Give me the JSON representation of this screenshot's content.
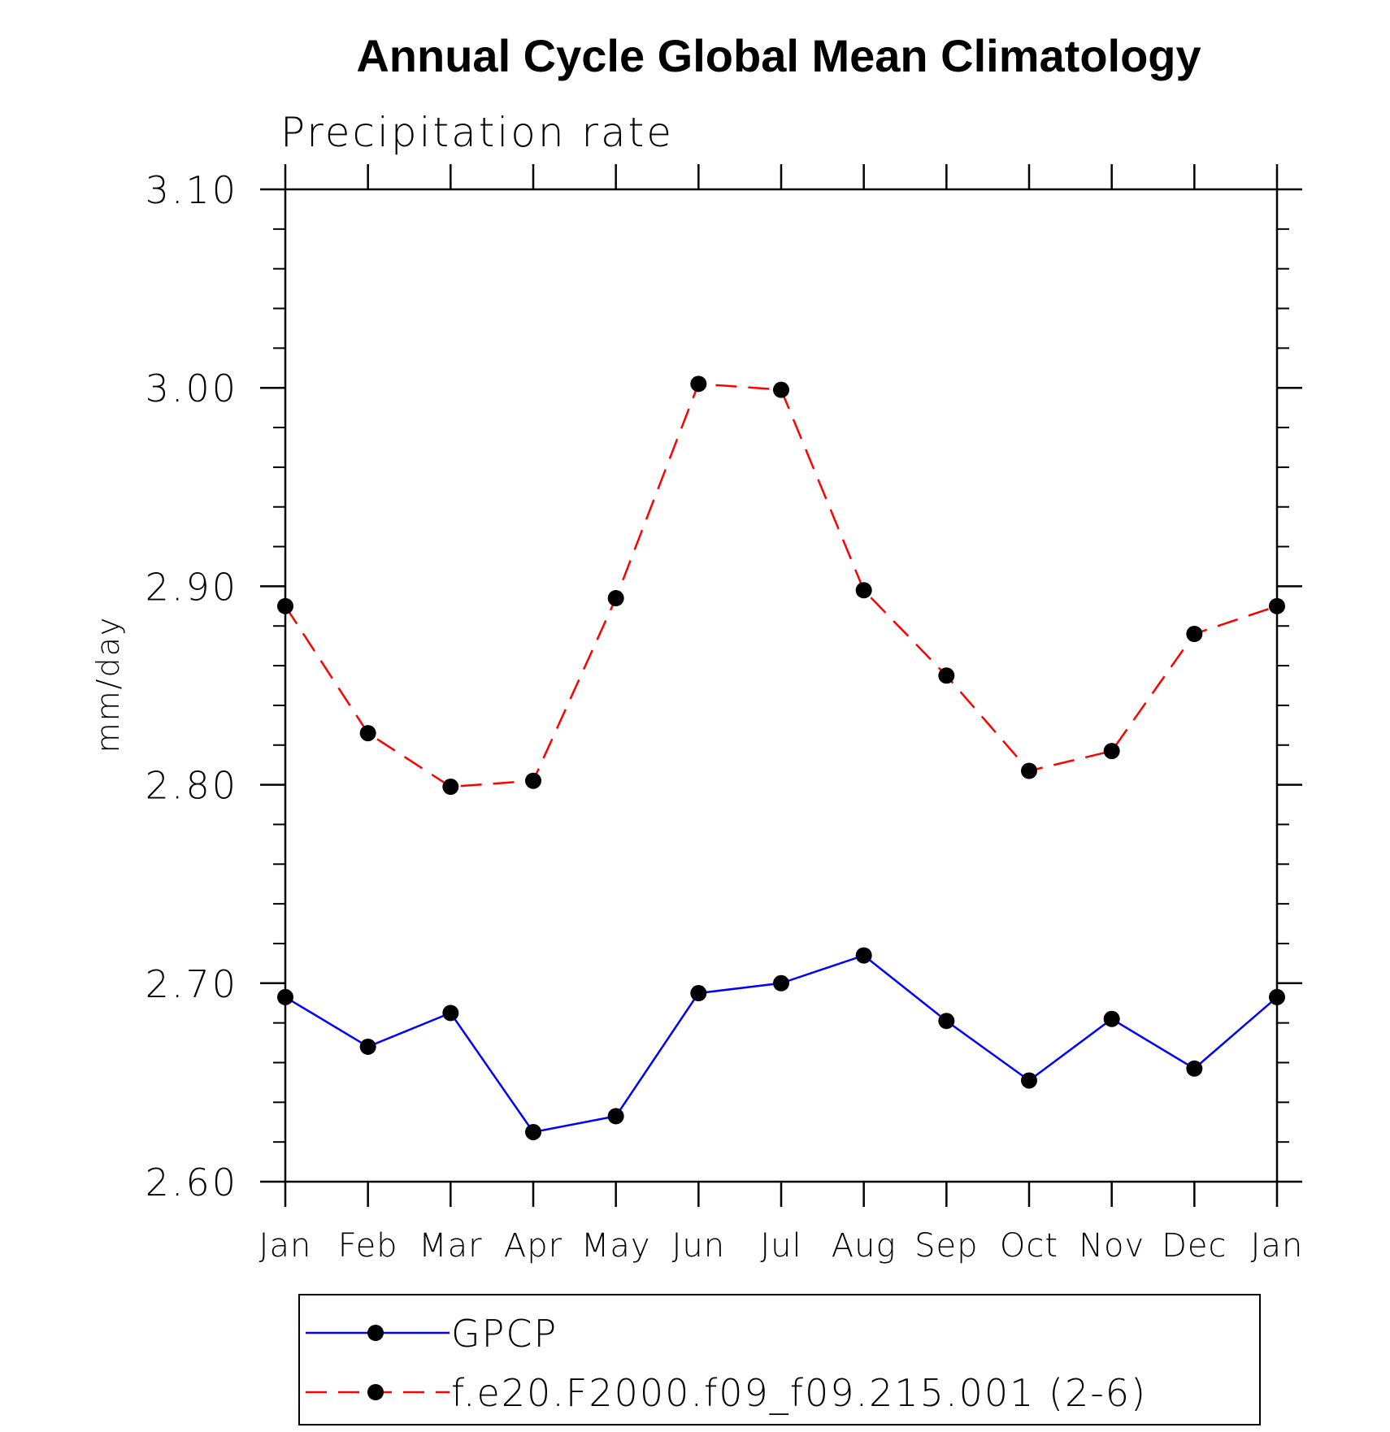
{
  "chart_data": {
    "type": "line",
    "title": "Annual Cycle Global Mean Climatology",
    "subtitle": "Precipitation rate",
    "xlabel": "",
    "ylabel": "mm/day",
    "categories": [
      "Jan",
      "Feb",
      "Mar",
      "Apr",
      "May",
      "Jun",
      "Jul",
      "Aug",
      "Sep",
      "Oct",
      "Nov",
      "Dec",
      "Jan"
    ],
    "ylim": [
      2.6,
      3.1
    ],
    "yticks": [
      "2.60",
      "2.70",
      "2.80",
      "2.90",
      "3.00",
      "3.10"
    ],
    "ytick_values": [
      2.6,
      2.7,
      2.8,
      2.9,
      3.0,
      3.1
    ],
    "minor_tick_step": 0.02,
    "grid": false,
    "legend_position": "bottom",
    "series": [
      {
        "name": "GPCP",
        "color": "#0000ff",
        "dash": "solid",
        "marker": "filled-circle",
        "values": [
          2.693,
          2.668,
          2.685,
          2.625,
          2.633,
          2.695,
          2.7,
          2.714,
          2.681,
          2.651,
          2.682,
          2.657,
          2.693
        ]
      },
      {
        "name": "f.e20.F2000.f09_f09.215.001 (2-6)",
        "color": "#ff0000",
        "dash": "dashed",
        "marker": "filled-circle",
        "values": [
          2.89,
          2.826,
          2.799,
          2.802,
          2.894,
          3.002,
          2.999,
          2.898,
          2.855,
          2.807,
          2.817,
          2.876,
          2.89
        ]
      }
    ]
  }
}
